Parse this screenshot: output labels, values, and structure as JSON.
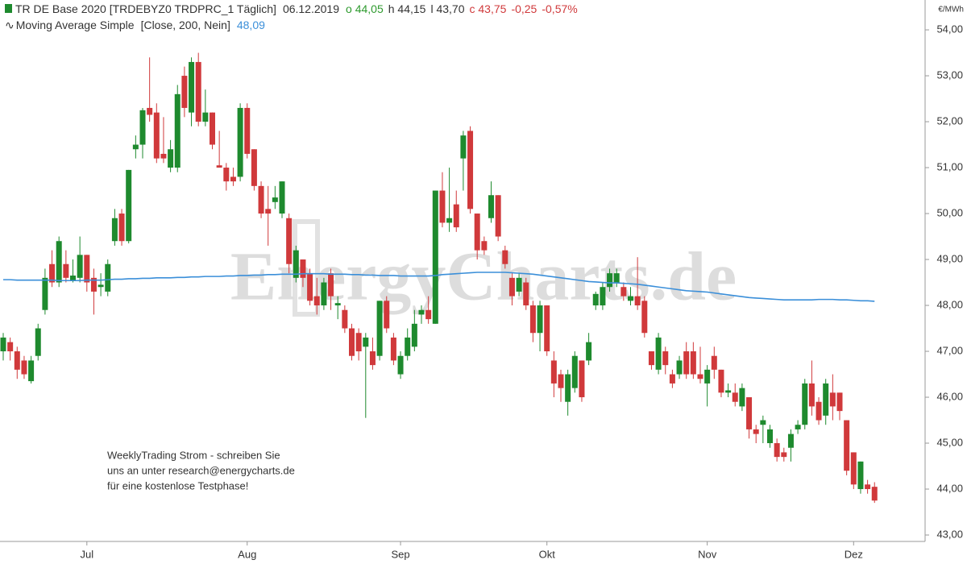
{
  "chart_data": {
    "type": "candlestick",
    "title": "TR DE Base 2020 [TRDEBYZ0 TRDPRC_1 Täglich]",
    "date": "06.12.2019",
    "quote": [
      {
        "text": "o 44,05",
        "color": "#2e9a2e"
      },
      {
        "text": "h 44,15",
        "color": "#333333"
      },
      {
        "text": "l 43,70",
        "color": "#333333"
      },
      {
        "text": "c 43,75",
        "color": "#d0393b"
      },
      {
        "text": "-0,25",
        "color": "#d0393b"
      },
      {
        "text": "-0,57%",
        "color": "#d0393b"
      }
    ],
    "y_unit": "€/MWh",
    "watermark": "EnergyCharts.de",
    "annotation": [
      "WeeklyTrading Strom - schreiben Sie",
      "uns an unter research@energycharts.de",
      "für eine kostenlose Testphase!"
    ],
    "up_color": "#1e8a2e",
    "down_color": "#d0393b",
    "categories": [
      null,
      null,
      null,
      null,
      null,
      null,
      null,
      null,
      null,
      null,
      null,
      null,
      "Jul",
      null,
      null,
      null,
      null,
      null,
      null,
      null,
      null,
      null,
      null,
      null,
      null,
      null,
      null,
      null,
      null,
      null,
      null,
      null,
      null,
      null,
      null,
      "Aug",
      null,
      null,
      null,
      null,
      null,
      null,
      null,
      null,
      null,
      null,
      null,
      null,
      null,
      null,
      null,
      null,
      null,
      null,
      null,
      null,
      null,
      "Sep",
      null,
      null,
      null,
      null,
      null,
      null,
      null,
      null,
      null,
      null,
      null,
      null,
      null,
      null,
      null,
      null,
      null,
      null,
      null,
      null,
      "Okt",
      null,
      null,
      null,
      null,
      null,
      null,
      null,
      null,
      null,
      null,
      null,
      null,
      null,
      null,
      null,
      null,
      null,
      null,
      null,
      null,
      null,
      null,
      "Nov",
      null,
      null,
      null,
      null,
      null,
      null,
      null,
      null,
      null,
      null,
      null,
      null,
      null,
      null,
      null,
      null,
      null,
      null,
      null,
      null,
      "Dez",
      null,
      null,
      null
    ],
    "open": [
      47.0,
      47.2,
      47.0,
      46.8,
      46.35,
      46.9,
      47.9,
      48.9,
      48.5,
      48.9,
      48.55,
      48.6,
      49.1,
      48.6,
      48.4,
      48.3,
      49.4,
      50.0,
      49.4,
      51.4,
      51.5,
      52.3,
      52.2,
      51.3,
      51.0,
      51.0,
      53.0,
      52.2,
      53.3,
      52.0,
      52.2,
      51.05,
      51.0,
      50.8,
      50.8,
      52.3,
      51.4,
      50.6,
      50.1,
      50.25,
      50.0,
      49.9,
      48.6,
      49.0,
      48.7,
      48.2,
      48.0,
      48.7,
      48.0,
      47.9,
      47.5,
      47.4,
      47.1,
      47.0,
      46.9,
      48.1,
      47.3,
      46.5,
      46.9,
      47.1,
      47.8,
      47.9,
      47.6,
      50.5,
      49.8,
      50.2,
      51.2,
      51.8,
      50.0,
      49.4,
      49.9,
      50.4,
      49.2,
      48.6,
      48.3,
      48.5,
      48.0,
      47.4,
      48.0,
      46.8,
      46.5,
      45.9,
      46.2,
      46.8,
      46.8,
      48.0,
      48.0,
      48.4,
      48.5,
      48.4,
      48.1,
      48.2,
      48.1,
      47.0,
      46.6,
      47.0,
      46.5,
      46.5,
      47.0,
      47.0,
      46.5,
      46.3,
      46.9,
      46.6,
      46.1,
      46.1,
      45.8,
      46.0,
      45.3,
      45.4,
      45.0,
      45.0,
      44.8,
      44.9,
      45.3,
      45.4,
      46.3,
      45.9,
      45.6,
      46.1,
      46.1,
      45.5,
      44.8,
      44.0,
      44.1,
      44.05
    ],
    "high": [
      47.4,
      47.3,
      47.1,
      46.9,
      46.9,
      47.6,
      48.8,
      49.2,
      49.5,
      49.2,
      49.0,
      49.5,
      49.1,
      48.8,
      48.7,
      49.0,
      50.1,
      50.1,
      50.95,
      51.7,
      52.3,
      53.4,
      52.4,
      52.1,
      51.6,
      52.8,
      53.2,
      53.4,
      53.5,
      52.7,
      52.2,
      51.8,
      51.1,
      51.0,
      52.4,
      52.4,
      51.4,
      50.7,
      50.6,
      50.6,
      50.7,
      50.0,
      49.3,
      49.0,
      48.8,
      48.6,
      48.6,
      48.8,
      48.2,
      48.0,
      47.6,
      47.5,
      47.4,
      47.3,
      48.1,
      48.2,
      47.4,
      47.0,
      47.5,
      47.9,
      48.0,
      48.2,
      50.5,
      50.9,
      51.0,
      50.5,
      51.8,
      51.9,
      50.0,
      49.5,
      50.7,
      50.4,
      49.3,
      48.7,
      48.7,
      48.6,
      48.1,
      48.1,
      48.0,
      47.0,
      46.6,
      46.6,
      47.0,
      46.8,
      47.4,
      48.3,
      48.5,
      48.8,
      48.8,
      48.5,
      48.4,
      49.05,
      48.2,
      47.0,
      47.4,
      47.1,
      46.6,
      46.9,
      47.2,
      47.2,
      47.1,
      46.7,
      47.1,
      46.6,
      46.3,
      46.3,
      46.3,
      46.0,
      45.4,
      45.6,
      45.4,
      45.1,
      44.9,
      45.3,
      45.5,
      46.4,
      46.8,
      46.0,
      46.4,
      46.5,
      46.1,
      45.5,
      44.8,
      44.6,
      44.2,
      44.15
    ],
    "low": [
      46.8,
      46.8,
      46.4,
      46.4,
      46.3,
      46.8,
      47.8,
      48.4,
      48.4,
      48.5,
      48.5,
      48.5,
      48.3,
      47.8,
      48.2,
      48.2,
      49.3,
      49.3,
      49.35,
      51.2,
      51.2,
      52.0,
      51.1,
      51.1,
      50.9,
      50.9,
      52.1,
      51.9,
      51.9,
      51.9,
      51.4,
      51.0,
      50.5,
      50.6,
      50.7,
      51.2,
      50.5,
      49.9,
      49.3,
      50.1,
      49.9,
      48.7,
      48.5,
      48.4,
      48.0,
      47.8,
      47.9,
      47.9,
      47.7,
      47.4,
      46.8,
      46.8,
      45.55,
      46.6,
      46.8,
      47.4,
      46.7,
      46.4,
      46.8,
      47.0,
      47.6,
      47.6,
      47.6,
      49.7,
      49.6,
      49.6,
      50.5,
      50.0,
      49.0,
      49.1,
      49.8,
      49.4,
      48.8,
      48.0,
      48.2,
      47.9,
      47.2,
      47.0,
      46.9,
      46.0,
      45.9,
      45.6,
      46.1,
      45.9,
      46.7,
      47.9,
      47.9,
      48.3,
      48.4,
      48.1,
      48.0,
      47.9,
      47.3,
      46.6,
      46.5,
      46.5,
      46.2,
      46.4,
      46.4,
      46.4,
      46.3,
      45.8,
      46.4,
      46.0,
      46.0,
      45.8,
      45.7,
      45.1,
      45.0,
      45.0,
      44.9,
      44.6,
      44.6,
      44.6,
      45.2,
      45.3,
      45.6,
      45.4,
      45.4,
      45.5,
      45.5,
      44.3,
      44.0,
      43.9,
      43.9,
      43.7
    ],
    "close": [
      47.3,
      47.0,
      46.6,
      46.5,
      46.8,
      47.5,
      48.6,
      48.5,
      49.4,
      48.6,
      48.65,
      49.1,
      48.5,
      48.3,
      48.45,
      48.9,
      49.9,
      49.4,
      50.95,
      51.5,
      52.25,
      52.15,
      51.2,
      51.2,
      51.4,
      52.6,
      52.3,
      53.3,
      52.0,
      52.2,
      51.5,
      51.0,
      50.7,
      50.7,
      52.3,
      51.3,
      50.6,
      50.0,
      50.0,
      50.35,
      50.7,
      48.9,
      49.2,
      48.6,
      48.1,
      48.0,
      48.5,
      48.2,
      48.05,
      47.5,
      46.9,
      47.0,
      47.3,
      46.7,
      48.1,
      47.5,
      46.8,
      46.9,
      47.3,
      47.6,
      47.9,
      47.7,
      50.5,
      49.8,
      49.9,
      49.7,
      51.7,
      50.1,
      49.2,
      49.2,
      50.4,
      49.5,
      48.9,
      48.2,
      48.6,
      48.0,
      47.4,
      48.0,
      47.0,
      46.3,
      46.2,
      46.5,
      46.9,
      46.0,
      47.2,
      48.25,
      48.4,
      48.7,
      48.7,
      48.2,
      48.2,
      48.0,
      47.4,
      46.7,
      47.3,
      46.7,
      46.3,
      46.8,
      46.5,
      46.5,
      46.4,
      46.6,
      46.6,
      46.1,
      46.15,
      45.9,
      46.2,
      45.3,
      45.2,
      45.5,
      45.3,
      44.7,
      44.7,
      45.2,
      45.4,
      46.3,
      45.8,
      45.5,
      46.3,
      45.8,
      45.7,
      44.4,
      44.1,
      44.6,
      44.0,
      43.75
    ],
    "series": [
      {
        "name": "Moving Average Simple",
        "params": "[Close, 200, Nein]",
        "value_label": "48,09",
        "color": "#3b8fd9",
        "values": [
          48.56,
          48.56,
          48.55,
          48.55,
          48.55,
          48.55,
          48.55,
          48.55,
          48.54,
          48.54,
          48.54,
          48.54,
          48.55,
          48.55,
          48.55,
          48.56,
          48.57,
          48.57,
          48.58,
          48.58,
          48.59,
          48.59,
          48.6,
          48.6,
          48.6,
          48.61,
          48.61,
          48.62,
          48.62,
          48.63,
          48.63,
          48.63,
          48.64,
          48.64,
          48.65,
          48.65,
          48.66,
          48.66,
          48.67,
          48.67,
          48.68,
          48.68,
          48.68,
          48.69,
          48.69,
          48.69,
          48.69,
          48.68,
          48.68,
          48.68,
          48.67,
          48.67,
          48.66,
          48.66,
          48.65,
          48.65,
          48.65,
          48.64,
          48.64,
          48.64,
          48.64,
          48.64,
          48.65,
          48.67,
          48.68,
          48.69,
          48.7,
          48.71,
          48.72,
          48.72,
          48.72,
          48.72,
          48.72,
          48.71,
          48.7,
          48.69,
          48.68,
          48.66,
          48.64,
          48.62,
          48.6,
          48.58,
          48.56,
          48.54,
          48.52,
          48.51,
          48.5,
          48.49,
          48.49,
          48.48,
          48.47,
          48.46,
          48.44,
          48.42,
          48.4,
          48.38,
          48.36,
          48.34,
          48.32,
          48.31,
          48.3,
          48.29,
          48.27,
          48.25,
          48.23,
          48.21,
          48.19,
          48.17,
          48.16,
          48.15,
          48.14,
          48.13,
          48.12,
          48.12,
          48.12,
          48.12,
          48.12,
          48.13,
          48.13,
          48.13,
          48.12,
          48.12,
          48.11,
          48.1,
          48.1,
          48.09
        ]
      }
    ],
    "ylim": [
      42.86,
      54.65
    ],
    "yticks": [
      {
        "value": 43,
        "label": "43,00"
      },
      {
        "value": 44,
        "label": "44,00"
      },
      {
        "value": 45,
        "label": "45,00"
      },
      {
        "value": 46,
        "label": "46,00"
      },
      {
        "value": 47,
        "label": "47,00"
      },
      {
        "value": 48,
        "label": "48,00"
      },
      {
        "value": 49,
        "label": "49,00"
      },
      {
        "value": 50,
        "label": "50,00"
      },
      {
        "value": 51,
        "label": "51,00"
      },
      {
        "value": 52,
        "label": "52,00"
      },
      {
        "value": 53,
        "label": "53,00"
      },
      {
        "value": 54,
        "label": "54,00"
      }
    ],
    "grid": false
  }
}
